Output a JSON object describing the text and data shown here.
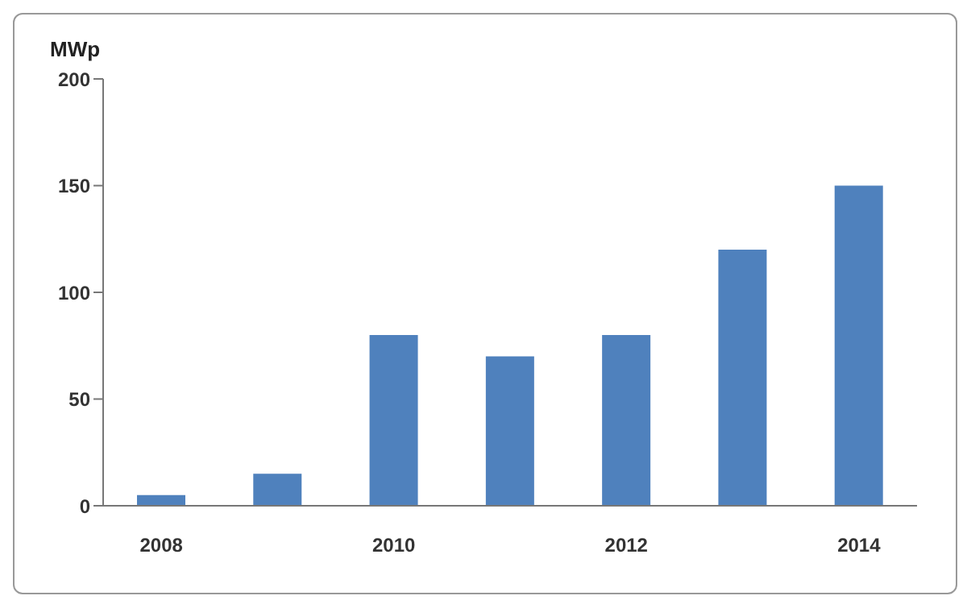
{
  "chart_data": {
    "type": "bar",
    "ylabel": "MWp",
    "categories": [
      "2008",
      null,
      "2010",
      null,
      "2012",
      null,
      "2014"
    ],
    "values": [
      5,
      15,
      80,
      70,
      80,
      120,
      150
    ],
    "color": "#4f81bd",
    "ylim": [
      0,
      200
    ],
    "yticks": [
      0,
      50,
      100,
      150,
      200
    ]
  }
}
